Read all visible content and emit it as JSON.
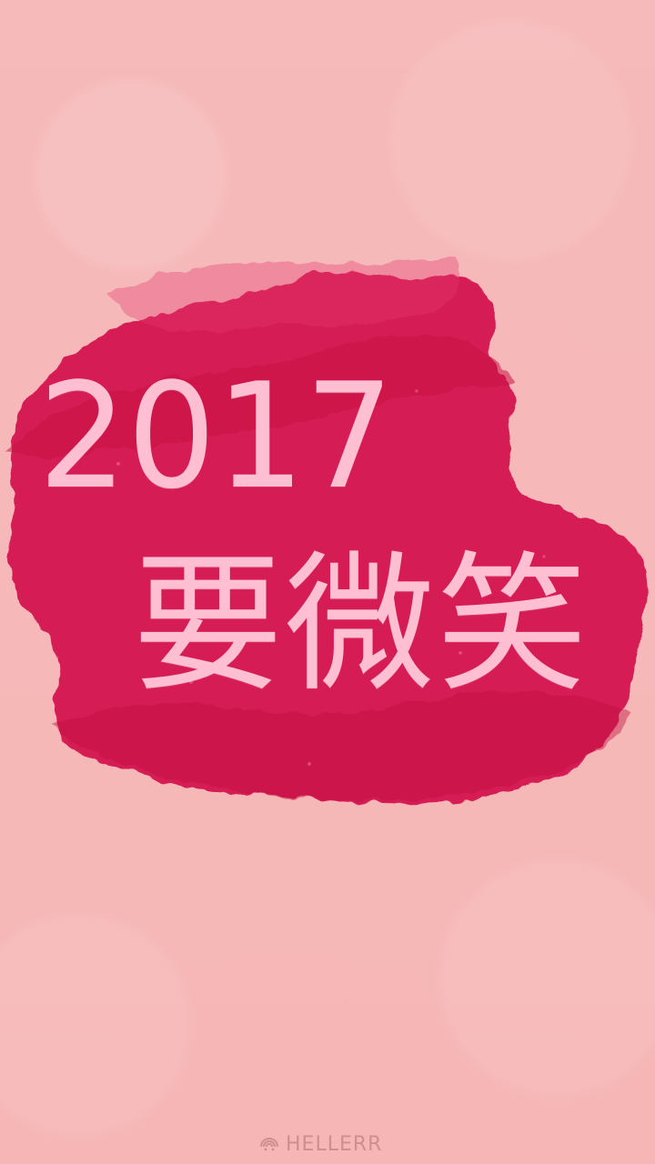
{
  "poster": {
    "year": "2017",
    "slogan": "要微笑",
    "watermark": "HELLERR"
  },
  "colors": {
    "background": "#f6b6b6",
    "paint": "#d61f55",
    "text": "#ffbfd3",
    "watermark": "#b37777"
  },
  "icons": {
    "watermark_icon": "rainbow-logo-icon"
  }
}
